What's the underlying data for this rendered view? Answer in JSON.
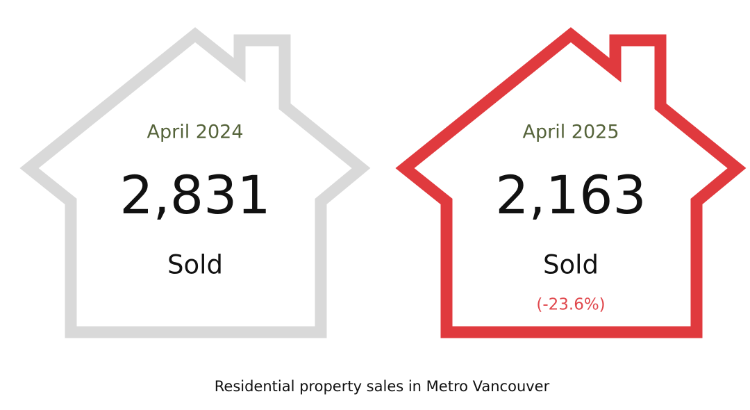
{
  "houses": [
    {
      "period": "April 2024",
      "value": "2,831",
      "label": "Sold"
    },
    {
      "period": "April 2025",
      "value": "2,163",
      "label": "Sold",
      "change": "(-23.6%)"
    }
  ],
  "caption": "Residential property sales in Metro Vancouver"
}
